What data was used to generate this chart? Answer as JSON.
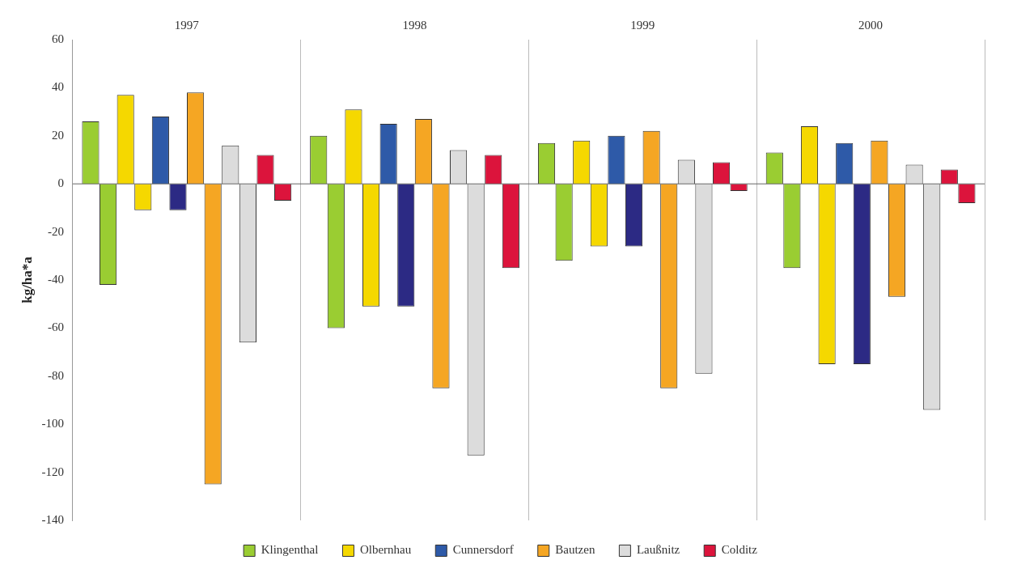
{
  "chart_data": {
    "type": "bar",
    "ylabel": "kg/ha*a",
    "categories": [
      "1997",
      "1998",
      "1999",
      "2000"
    ],
    "series": [
      {
        "name": "Klingenthal",
        "color": "#9acd32",
        "values": [
          26,
          20,
          17,
          13
        ]
      },
      {
        "color": "#9acd32",
        "values": [
          -42,
          -60,
          -32,
          -35
        ]
      },
      {
        "name": "Olbernhau",
        "color": "#f5d800",
        "values": [
          37,
          31,
          18,
          24
        ]
      },
      {
        "color": "#f5d800",
        "values": [
          -11,
          -51,
          -26,
          -75
        ]
      },
      {
        "name": "Cunnersdorf",
        "color": "#2e5aa8",
        "values": [
          28,
          25,
          20,
          17
        ]
      },
      {
        "color": "#2c2a84",
        "values": [
          -11,
          -51,
          -26,
          -75
        ]
      },
      {
        "name": "Bautzen",
        "color": "#f5a623",
        "values": [
          38,
          27,
          22,
          18
        ]
      },
      {
        "color": "#f5a623",
        "values": [
          -125,
          -85,
          -85,
          -47
        ]
      },
      {
        "name": "Laußnitz",
        "color": "#dcdcdc",
        "values": [
          16,
          14,
          10,
          8
        ]
      },
      {
        "color": "#dcdcdc",
        "values": [
          -66,
          -113,
          -79,
          -94
        ]
      },
      {
        "name": "Colditz",
        "color": "#dc143c",
        "values": [
          12,
          12,
          9,
          6
        ]
      },
      {
        "color": "#dc143c",
        "values": [
          -7,
          -35,
          -3,
          -8
        ]
      }
    ],
    "ylim": [
      -140,
      60
    ],
    "yticks": [
      -140,
      -120,
      -100,
      -80,
      -60,
      -40,
      -20,
      0,
      20,
      40,
      60
    ],
    "grid": "x",
    "legend": "bottom"
  }
}
